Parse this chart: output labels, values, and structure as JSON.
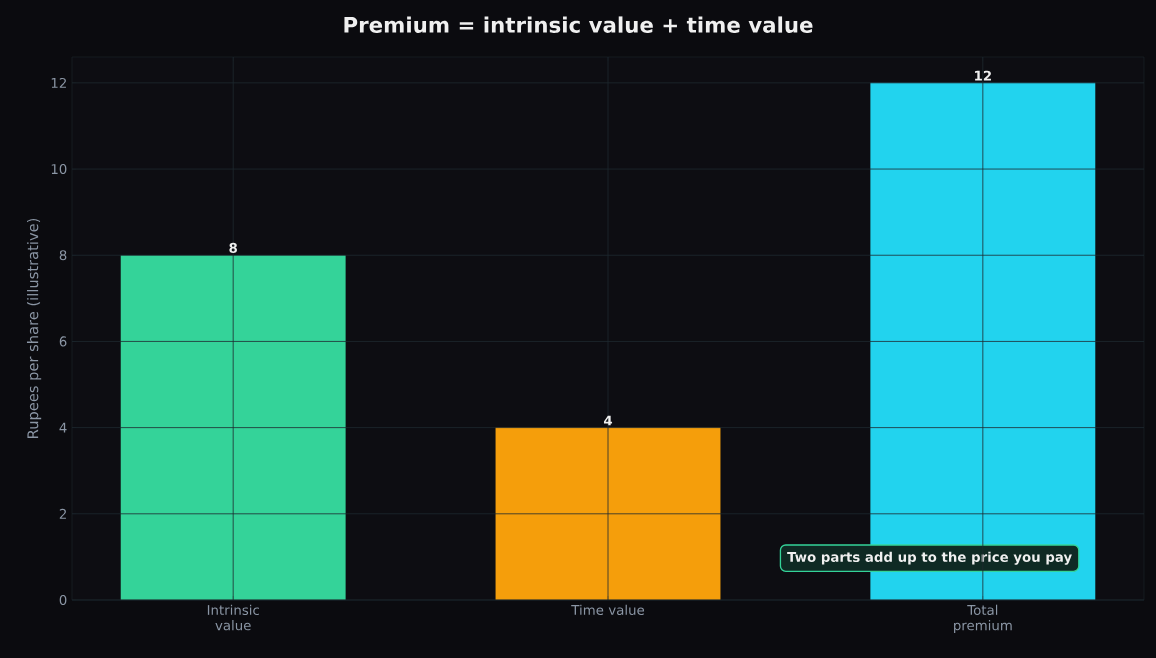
{
  "chart_data": {
    "type": "bar",
    "title": "Premium = intrinsic value + time value",
    "ylabel": "Rupees per share (illustrative)",
    "categories": [
      "Intrinsic value",
      "Time value",
      "Total premium"
    ],
    "values": [
      8,
      4,
      12
    ],
    "colors": [
      "#34d399",
      "#f59e0b",
      "#22d3ee"
    ],
    "ylim": [
      0,
      12.6
    ],
    "yticks": [
      0,
      2,
      4,
      6,
      8,
      10,
      12
    ],
    "grid": true,
    "data_labels": true,
    "annotations": [
      "Two parts add up to the price you pay"
    ]
  }
}
